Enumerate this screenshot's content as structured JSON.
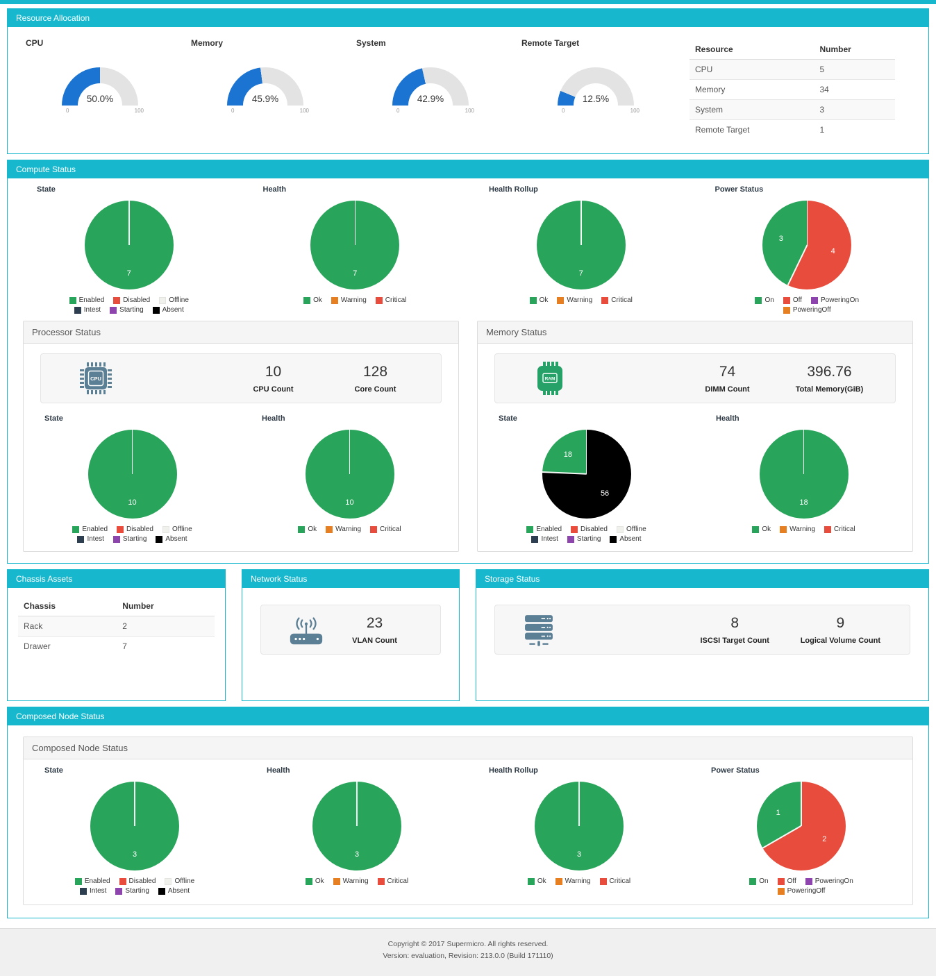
{
  "colors": {
    "accent": "#17b8ce",
    "gauge_fill": "#1b74d1",
    "gauge_track": "#e3e3e3",
    "icon_slate": "#5b7f95",
    "icon_green": "#26a269",
    "status": {
      "Enabled": "#29a45b",
      "Disabled": "#e74c3c",
      "Offline": "#f0f0ec",
      "Intest": "#2c3e50",
      "Starting": "#8e44ad",
      "Absent": "#000000",
      "Ok": "#29a45b",
      "Warning": "#e67e22",
      "Critical": "#e74c3c",
      "On": "#29a45b",
      "Off": "#e74c3c",
      "PoweringOn": "#8e44ad",
      "PoweringOff": "#e67e22"
    }
  },
  "legend_sets": {
    "state": [
      [
        "Enabled",
        "Disabled",
        "Offline"
      ],
      [
        "Intest",
        "Starting",
        "Absent"
      ]
    ],
    "health": [
      [
        "Ok",
        "Warning",
        "Critical"
      ]
    ],
    "power": [
      [
        "On",
        "Off",
        "PoweringOn"
      ],
      [
        "PoweringOff"
      ]
    ]
  },
  "resource_allocation": {
    "title": "Resource Allocation",
    "gauges": [
      {
        "label": "CPU",
        "percent": 50.0,
        "display": "50.0%",
        "min": "0",
        "max": "100"
      },
      {
        "label": "Memory",
        "percent": 45.9,
        "display": "45.9%",
        "min": "0",
        "max": "100"
      },
      {
        "label": "System",
        "percent": 42.9,
        "display": "42.9%",
        "min": "0",
        "max": "100"
      },
      {
        "label": "Remote Target",
        "percent": 12.5,
        "display": "12.5%",
        "min": "0",
        "max": "100"
      }
    ],
    "table": {
      "headers": [
        "Resource",
        "Number"
      ],
      "rows": [
        [
          "CPU",
          "5"
        ],
        [
          "Memory",
          "34"
        ],
        [
          "System",
          "3"
        ],
        [
          "Remote Target",
          "1"
        ]
      ]
    }
  },
  "compute_status": {
    "title": "Compute Status",
    "pies": [
      {
        "title": "State",
        "legend": "state",
        "slices": [
          {
            "name": "Enabled",
            "value": 7
          }
        ]
      },
      {
        "title": "Health",
        "legend": "health",
        "slices": [
          {
            "name": "Ok",
            "value": 7
          }
        ]
      },
      {
        "title": "Health Rollup",
        "legend": "health",
        "slices": [
          {
            "name": "Ok",
            "value": 7
          }
        ]
      },
      {
        "title": "Power Status",
        "legend": "power",
        "slices": [
          {
            "name": "Off",
            "value": 4
          },
          {
            "name": "On",
            "value": 3
          }
        ]
      }
    ],
    "processor": {
      "title": "Processor Status",
      "stats": [
        {
          "value": "10",
          "label": "CPU Count"
        },
        {
          "value": "128",
          "label": "Core Count"
        }
      ],
      "pies": [
        {
          "title": "State",
          "legend": "state",
          "slices": [
            {
              "name": "Enabled",
              "value": 10
            }
          ]
        },
        {
          "title": "Health",
          "legend": "health",
          "slices": [
            {
              "name": "Ok",
              "value": 10
            }
          ]
        }
      ]
    },
    "memory": {
      "title": "Memory Status",
      "stats": [
        {
          "value": "74",
          "label": "DIMM Count"
        },
        {
          "value": "396.76",
          "label": "Total Memory(GiB)"
        }
      ],
      "pies": [
        {
          "title": "State",
          "legend": "state",
          "slices": [
            {
              "name": "Absent",
              "value": 56
            },
            {
              "name": "Enabled",
              "value": 18
            }
          ]
        },
        {
          "title": "Health",
          "legend": "health",
          "slices": [
            {
              "name": "Ok",
              "value": 18
            }
          ]
        }
      ]
    }
  },
  "chassis_assets": {
    "title": "Chassis Assets",
    "table": {
      "headers": [
        "Chassis",
        "Number"
      ],
      "rows": [
        [
          "Rack",
          "2"
        ],
        [
          "Drawer",
          "7"
        ]
      ]
    }
  },
  "network_status": {
    "title": "Network Status",
    "stats": [
      {
        "value": "23",
        "label": "VLAN Count"
      }
    ]
  },
  "storage_status": {
    "title": "Storage Status",
    "stats": [
      {
        "value": "8",
        "label": "ISCSI Target Count"
      },
      {
        "value": "9",
        "label": "Logical Volume Count"
      }
    ]
  },
  "composed_node_status": {
    "title": "Composed Node Status",
    "inner_title": "Composed Node Status",
    "pies": [
      {
        "title": "State",
        "legend": "state",
        "slices": [
          {
            "name": "Enabled",
            "value": 3
          }
        ]
      },
      {
        "title": "Health",
        "legend": "health",
        "slices": [
          {
            "name": "Ok",
            "value": 3
          }
        ]
      },
      {
        "title": "Health Rollup",
        "legend": "health",
        "slices": [
          {
            "name": "Ok",
            "value": 3
          }
        ]
      },
      {
        "title": "Power Status",
        "legend": "power",
        "slices": [
          {
            "name": "Off",
            "value": 2
          },
          {
            "name": "On",
            "value": 1
          }
        ]
      }
    ]
  },
  "footer": {
    "line1": "Copyright © 2017 Supermicro. All rights reserved.",
    "line2": "Version: evaluation, Revision: 213.0.0 (Build 171110)"
  }
}
